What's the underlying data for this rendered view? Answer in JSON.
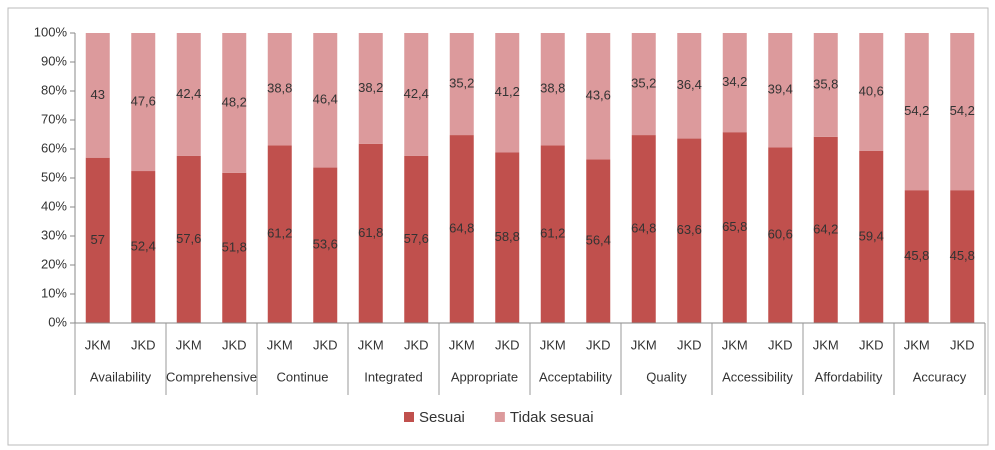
{
  "chart_data": {
    "type": "stacked_bar",
    "categories": [
      "JKM",
      "JKD",
      "JKM",
      "JKD",
      "JKM",
      "JKD",
      "JKM",
      "JKD",
      "JKM",
      "JKD",
      "JKM",
      "JKD",
      "JKM",
      "JKD",
      "JKM",
      "JKD",
      "JKM",
      "JKD",
      "JKM",
      "JKD"
    ],
    "groups": [
      "Availability",
      "Comprehensive",
      "Continue",
      "Integrated",
      "Appropriate",
      "Acceptability",
      "Quality",
      "Accessibility",
      "Affordability",
      "Accuracy"
    ],
    "series": [
      {
        "name": "Sesuai",
        "color": "#c0504d",
        "values": [
          57,
          52.4,
          57.6,
          51.8,
          61.2,
          53.6,
          61.8,
          57.6,
          64.8,
          58.8,
          61.2,
          56.4,
          64.8,
          63.6,
          65.8,
          60.6,
          64.2,
          59.4,
          45.8,
          45.8
        ],
        "value_labels": [
          "57",
          "52,4",
          "57,6",
          "51,8",
          "61,2",
          "53,6",
          "61,8",
          "57,6",
          "64,8",
          "58,8",
          "61,2",
          "56,4",
          "64,8",
          "63,6",
          "65,8",
          "60,6",
          "64,2",
          "59,4",
          "45,8",
          "45,8"
        ]
      },
      {
        "name": "Tidak sesuai",
        "color": "#dc9a9c",
        "values": [
          43,
          47.6,
          42.4,
          48.2,
          38.8,
          46.4,
          38.2,
          42.4,
          35.2,
          41.2,
          38.8,
          43.6,
          35.2,
          36.4,
          34.2,
          39.4,
          35.8,
          40.6,
          54.2,
          54.2
        ],
        "value_labels": [
          "43",
          "47,6",
          "42,4",
          "48,2",
          "38,8",
          "46,4",
          "38,2",
          "42,4",
          "35,2",
          "41,2",
          "38,8",
          "43,6",
          "35,2",
          "36,4",
          "34,2",
          "39,4",
          "35,8",
          "40,6",
          "54,2",
          "54,2"
        ]
      }
    ],
    "ylim": [
      0,
      100
    ],
    "yticks": [
      {
        "value": 0,
        "label": "0%"
      },
      {
        "value": 10,
        "label": "10%"
      },
      {
        "value": 20,
        "label": "20%"
      },
      {
        "value": 30,
        "label": "30%"
      },
      {
        "value": 40,
        "label": "40%"
      },
      {
        "value": 50,
        "label": "50%"
      },
      {
        "value": 60,
        "label": "60%"
      },
      {
        "value": 70,
        "label": "70%"
      },
      {
        "value": 80,
        "label": "80%"
      },
      {
        "value": 90,
        "label": "90%"
      },
      {
        "value": 100,
        "label": "100%"
      }
    ],
    "grid": false,
    "legend": "bottom"
  }
}
